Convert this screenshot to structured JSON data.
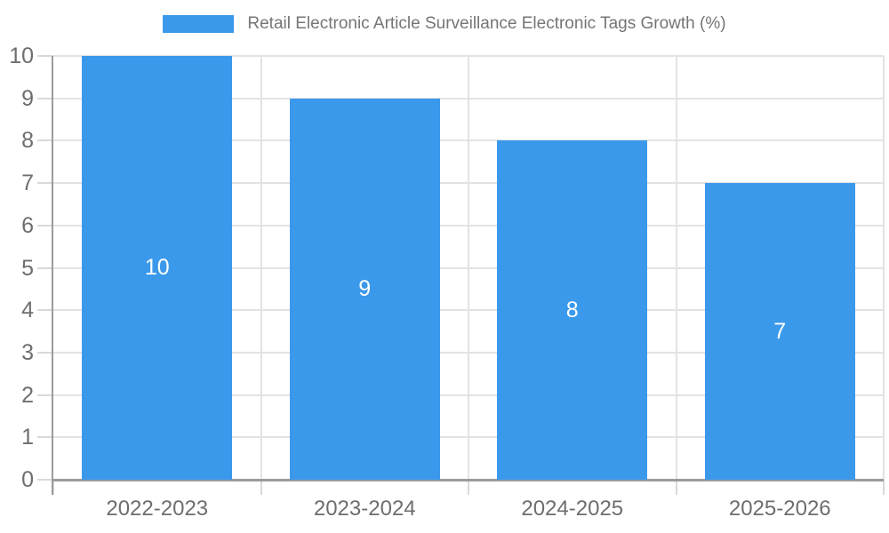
{
  "chart_data": {
    "type": "bar",
    "title": "Retail Electronic Article Surveillance Electronic Tags Growth (%)",
    "categories": [
      "2022-2023",
      "2023-2024",
      "2024-2025",
      "2025-2026"
    ],
    "values": [
      10,
      9,
      8,
      7
    ],
    "bar_value_labels": [
      "10",
      "9",
      "8",
      "7"
    ],
    "xlabel": "",
    "ylabel": "",
    "ylim": [
      0,
      10
    ],
    "yticks": [
      0,
      1,
      2,
      3,
      4,
      5,
      6,
      7,
      8,
      9,
      10
    ],
    "grid": true,
    "legend_position": "top-center",
    "colors": {
      "bar": "#3B99EB",
      "gridline": "#E3E3E3",
      "tick": "#D9D9D9",
      "axis": "#9B9B9B",
      "axis_label_text": "#6E6E6E",
      "legend_text": "#757575",
      "bar_label_text": "#FFFFFF",
      "background": "#FFFFFF"
    }
  }
}
